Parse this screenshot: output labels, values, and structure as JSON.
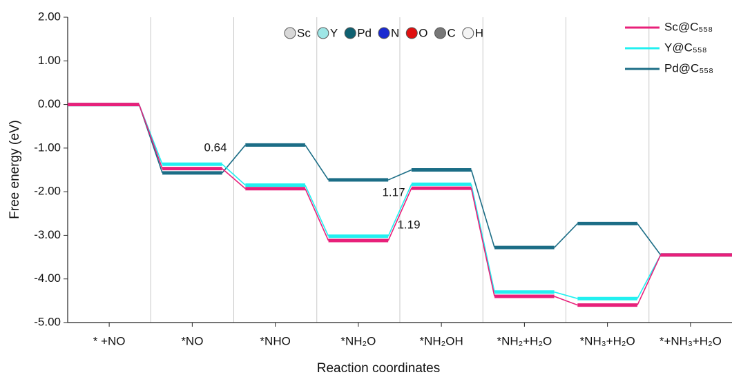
{
  "chart_data": {
    "type": "energy-levels",
    "xlabel": "Reaction coordinates",
    "ylabel": "Free energy (eV)",
    "categories": [
      "* +NO",
      "*NO",
      "*NHO",
      "*NH₂O",
      "*NH₂OH",
      "*NH₂+H₂O",
      "*NH₃+H₂O",
      "*+NH₃+H₂O"
    ],
    "series": [
      {
        "name": "Pd@C₅₅₈",
        "color": "#1b6d86",
        "values": [
          0,
          -1.57,
          -0.93,
          -1.73,
          -1.5,
          -3.28,
          -2.73,
          -3.45
        ]
      },
      {
        "name": "Y@C₅₅₈",
        "color": "#22f0f0",
        "values": [
          0,
          -1.37,
          -1.85,
          -3.02,
          -1.83,
          -4.3,
          -4.45,
          -3.45
        ]
      },
      {
        "name": "Sc@C₅₅₈",
        "color": "#e8207a",
        "values": [
          0,
          -1.47,
          -1.93,
          -3.12,
          -1.92,
          -4.4,
          -4.6,
          -3.45
        ]
      }
    ],
    "ylim": [
      -5,
      2
    ],
    "yticks": [
      {
        "value": -5,
        "label": "-5.00"
      },
      {
        "value": -4,
        "label": "-4.00"
      },
      {
        "value": -3,
        "label": "-3.00"
      },
      {
        "value": -2,
        "label": "-2.00"
      },
      {
        "value": -1,
        "label": "-1.00"
      },
      {
        "value": 0,
        "label": "0.00"
      },
      {
        "value": 1,
        "label": "1.00"
      },
      {
        "value": 2,
        "label": "2.00"
      }
    ],
    "annotations": [
      "0.64",
      "1.17",
      "1.19"
    ],
    "atom_legend": [
      {
        "label": "Sc",
        "color": "#d8d8d8"
      },
      {
        "label": "Y",
        "color": "#9ee6e6"
      },
      {
        "label": "Pd",
        "color": "#0e6070"
      },
      {
        "label": "N",
        "color": "#1a2ad0"
      },
      {
        "label": "O",
        "color": "#e01010"
      },
      {
        "label": "C",
        "color": "#777777"
      },
      {
        "label": "H",
        "color": "#f4f4f4"
      }
    ]
  }
}
